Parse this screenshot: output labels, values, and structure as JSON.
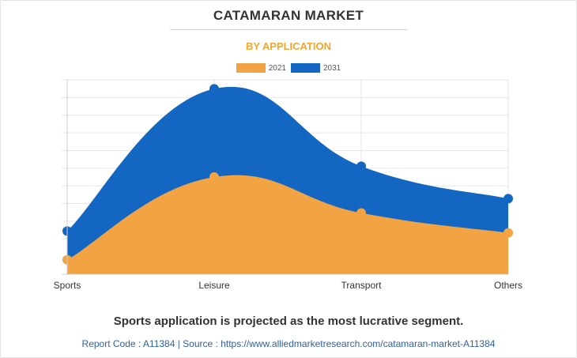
{
  "header": {
    "title": "CATAMARAN MARKET",
    "subtitle": "BY APPLICATION"
  },
  "chart_data": {
    "type": "area",
    "title": "CATAMARAN MARKET",
    "subtitle": "BY APPLICATION",
    "categories": [
      "Sports",
      "Leisure",
      "Transport",
      "Others"
    ],
    "series": [
      {
        "name": "2021",
        "color": "#f2a444",
        "values": [
          0.4,
          2.7,
          1.7,
          1.15
        ]
      },
      {
        "name": "2031",
        "color": "#1367c3",
        "values": [
          1.2,
          5.15,
          3.0,
          2.1
        ]
      }
    ],
    "ylim": [
      0,
      5.4
    ],
    "grid": true,
    "legend_position": "top-center",
    "xlabel": "",
    "ylabel": ""
  },
  "footer": {
    "headline": "Sports application is projected as the most lucrative segment.",
    "source": "Report Code : A11384  |  Source : https://www.alliedmarketresearch.com/catamaran-market-A11384"
  }
}
